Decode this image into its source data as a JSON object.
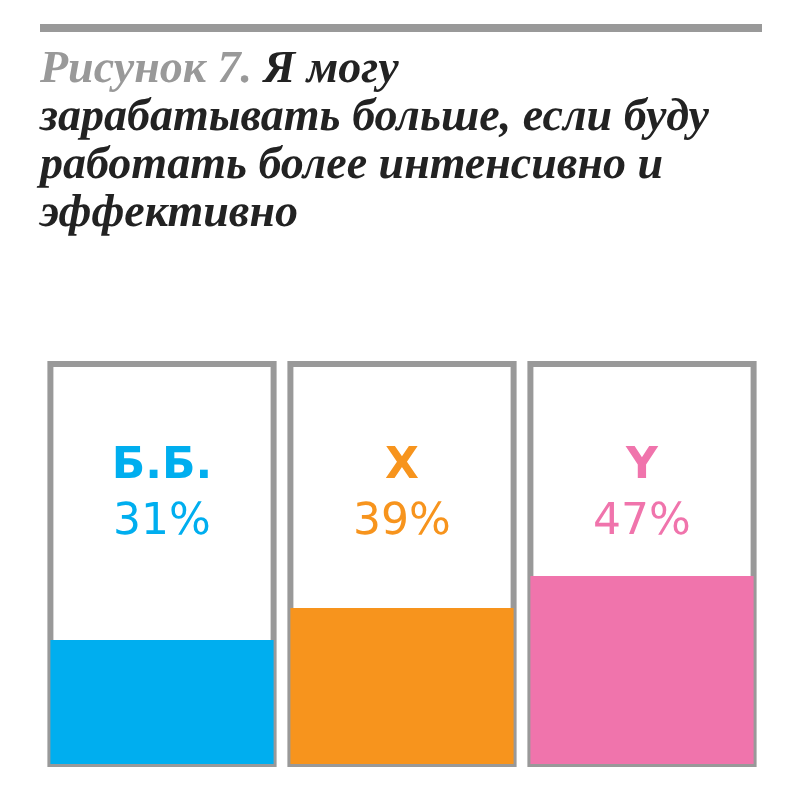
{
  "chart_data": {
    "type": "bar",
    "title": "Я могу зарабатывать больше, если буду работать более интенсивно и эффективно",
    "annotations": [
      "Рисунок 7."
    ],
    "categories": [
      "Б.Б.",
      "X",
      "Y"
    ],
    "values": [
      31,
      39,
      47
    ],
    "colors": [
      "#00aeef",
      "#f7941d",
      "#f074ac"
    ],
    "value_labels": [
      "31%",
      "39%",
      "47%"
    ],
    "ylim": [
      0,
      100
    ],
    "tick_labels": false,
    "legend": false
  }
}
